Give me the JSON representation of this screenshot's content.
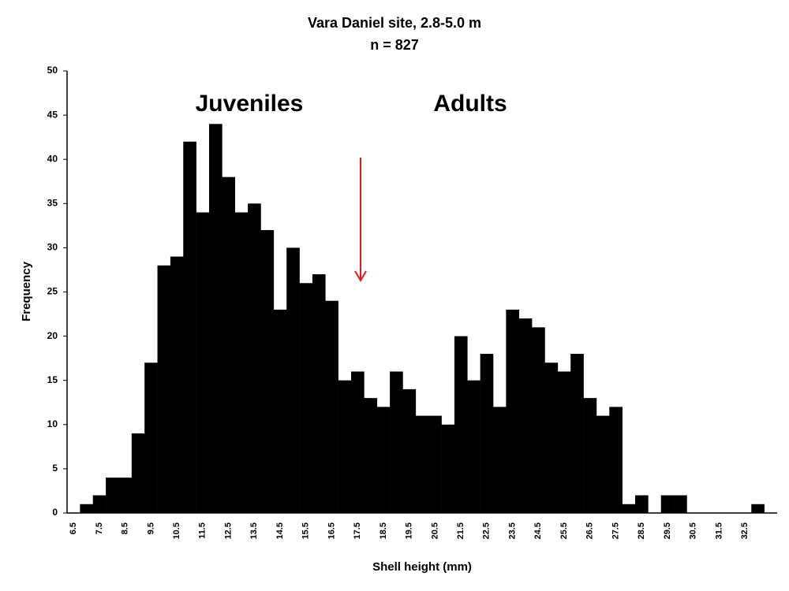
{
  "chart_data": {
    "type": "bar",
    "title": "Vara Daniel site, 2.8-5.0 m",
    "subtitle": "n = 827",
    "annotations": [
      "Juveniles",
      "Adults"
    ],
    "xlabel": "Shell height (mm)",
    "ylabel": "Frequency",
    "categories": [
      "6.5",
      null,
      "7.5",
      null,
      "8.5",
      null,
      "9.5",
      null,
      "10.5",
      null,
      "11.5",
      null,
      "12.5",
      null,
      "13.5",
      null,
      "14.5",
      null,
      "15.5",
      null,
      "16.5",
      null,
      "17.5",
      null,
      "18.5",
      null,
      "19.5",
      null,
      "20.5",
      null,
      "21.5",
      null,
      "22.5",
      null,
      "23.5",
      null,
      "24.5",
      null,
      "25.5",
      null,
      "26.5",
      null,
      "27.5",
      null,
      "28.5",
      null,
      "29.5",
      null,
      "30.5",
      null,
      "31.5",
      null,
      "32.5",
      null,
      null
    ],
    "values": [
      0,
      1,
      2,
      4,
      4,
      9,
      17,
      28,
      29,
      42,
      34,
      44,
      38,
      34,
      35,
      32,
      23,
      30,
      26,
      27,
      24,
      15,
      16,
      13,
      12,
      16,
      14,
      11,
      11,
      10,
      20,
      15,
      18,
      12,
      23,
      22,
      21,
      17,
      16,
      18,
      13,
      11,
      12,
      1,
      2,
      0,
      2,
      2,
      0,
      0,
      0,
      0,
      0,
      1,
      0
    ],
    "color": "#000000",
    "annotation_color": "#e31b1b",
    "ylim": [
      0,
      50
    ],
    "yticks": [
      0,
      5,
      10,
      15,
      20,
      25,
      30,
      35,
      40,
      45,
      50
    ]
  }
}
